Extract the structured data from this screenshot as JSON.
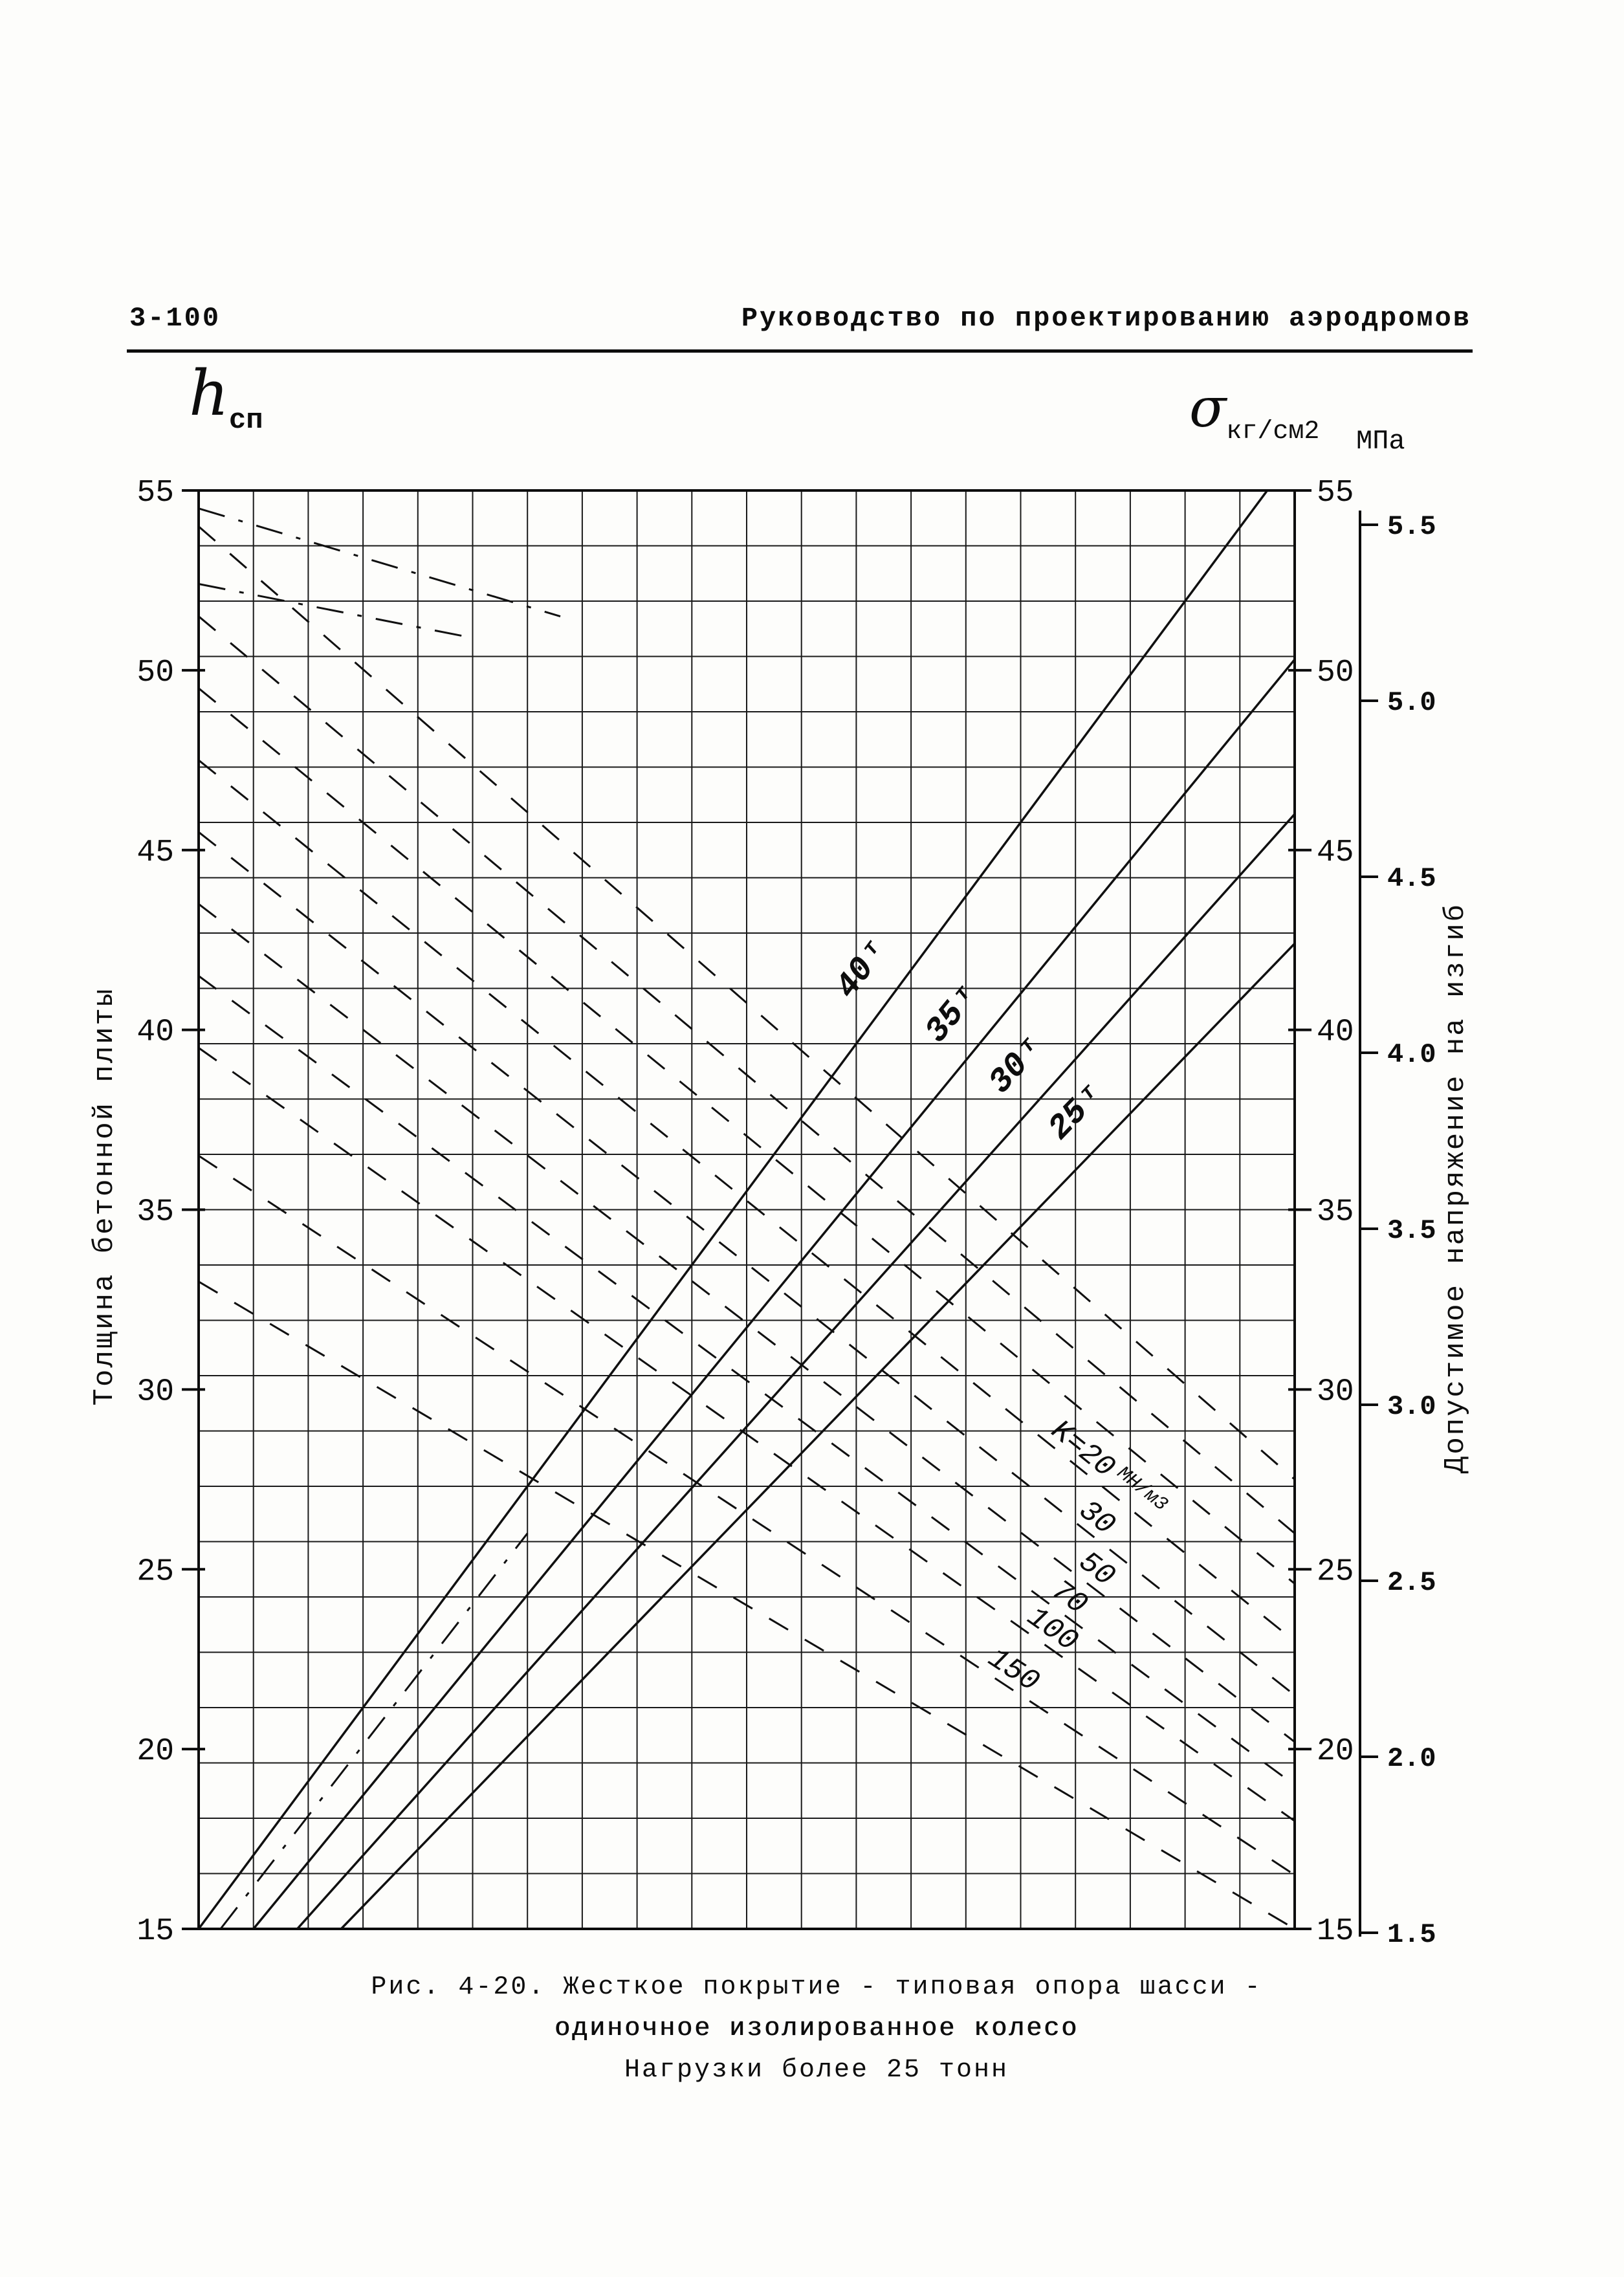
{
  "header": {
    "page_number": "3-100",
    "title": "Руководство по проектированию аэродромов"
  },
  "symbols": {
    "h": "h",
    "h_sub": "сп",
    "sigma": "σ",
    "sigma_sub": "кг/см2",
    "mpa": "МПа"
  },
  "caption": {
    "line1": "Рис. 4-20.  Жесткое покрытие - типовая опора шасси -",
    "line2": "одиночное изолированное колесо",
    "line3": "Нагрузки более 25 тонн"
  },
  "chart_data": {
    "type": "line",
    "title": "Жесткое покрытие - типовая опора шасси - одиночное изолированное колесо. Нагрузки более 25 тонн",
    "y_axis_left": {
      "title": "Толщина бетонной плиты",
      "symbol": "h сп",
      "range": [
        15,
        55
      ],
      "ticks": [
        55,
        50,
        45,
        40,
        35,
        30,
        25,
        20,
        15
      ]
    },
    "y_axis_right": {
      "title": "Допустимое напряжение на изгиб",
      "unit": "σ кг/см2",
      "range": [
        15,
        55
      ],
      "ticks": [
        55,
        50,
        45,
        40,
        35,
        30,
        25,
        20,
        15
      ]
    },
    "y_axis_mpa": {
      "unit": "МПа",
      "ticks": [
        "5.5",
        "5.0",
        "4.5",
        "4.0",
        "3.5",
        "3.0",
        "2.5",
        "2.0",
        "1.5"
      ]
    },
    "grid": {
      "columns": 20,
      "rows": 26
    },
    "load_lines": [
      {
        "label": "40",
        "unit": "т",
        "x": [
          0.0,
          0.975
        ],
        "y": [
          15,
          55
        ],
        "label_t": 0.65
      },
      {
        "label": "35",
        "unit": "т",
        "x": [
          0.05,
          1.0
        ],
        "y": [
          15,
          50.3
        ],
        "label_t": 0.7
      },
      {
        "label": "30",
        "unit": "т",
        "x": [
          0.09,
          1.0
        ],
        "y": [
          15,
          46.0
        ],
        "label_t": 0.75
      },
      {
        "label": "25",
        "unit": "т",
        "x": [
          0.13,
          1.0
        ],
        "y": [
          15,
          42.4
        ],
        "label_t": 0.8
      }
    ],
    "k_curves": [
      {
        "label": "K=20",
        "unit": "МН/м3",
        "x": [
          0,
          1
        ],
        "y": [
          47.5,
          23.0
        ],
        "label_t": 0.82
      },
      {
        "label": "30",
        "x": [
          0,
          1
        ],
        "y": [
          45.5,
          21.5
        ],
        "label_t": 0.81
      },
      {
        "label": "50",
        "x": [
          0,
          1
        ],
        "y": [
          43.5,
          20.2
        ],
        "label_t": 0.81
      },
      {
        "label": "70",
        "x": [
          0,
          1
        ],
        "y": [
          41.5,
          19.0
        ],
        "label_t": 0.785
      },
      {
        "label": "100",
        "x": [
          0,
          1
        ],
        "y": [
          39.5,
          18.0
        ],
        "label_t": 0.77
      },
      {
        "label": "150",
        "x": [
          0,
          1
        ],
        "y": [
          36.5,
          16.5
        ],
        "label_t": 0.735
      }
    ],
    "aux_dashes": [
      {
        "x": [
          0,
          1
        ],
        "y": [
          54.0,
          27.5
        ],
        "style": "dash"
      },
      {
        "x": [
          0,
          1
        ],
        "y": [
          51.5,
          26.0
        ],
        "style": "dash"
      },
      {
        "x": [
          0,
          1
        ],
        "y": [
          49.5,
          24.6
        ],
        "style": "dash"
      },
      {
        "x": [
          0,
          1
        ],
        "y": [
          33.0,
          15.0
        ],
        "style": "dash"
      },
      {
        "x": [
          0,
          0.33
        ],
        "y": [
          54.5,
          51.5
        ],
        "style": "dashdot"
      },
      {
        "x": [
          0,
          0.25
        ],
        "y": [
          52.4,
          50.9
        ],
        "style": "dashdot"
      },
      {
        "x": [
          0.02,
          0.3
        ],
        "y": [
          15.0,
          26.0
        ],
        "style": "dashdot"
      }
    ]
  }
}
